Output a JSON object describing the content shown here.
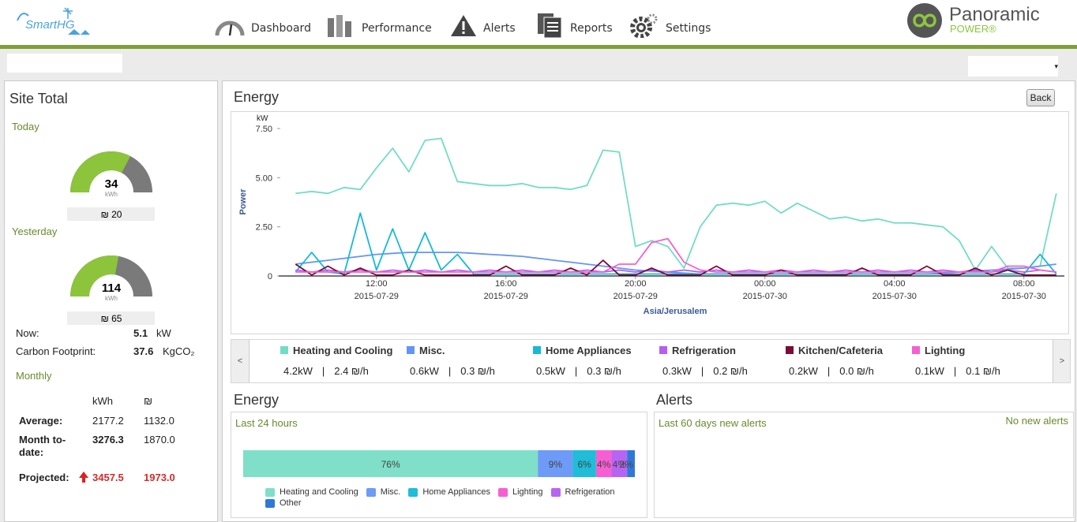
{
  "header": {
    "logo": "SmartHG",
    "nav": [
      "Dashboard",
      "Performance",
      "Alerts",
      "Reports",
      "Settings"
    ],
    "brand": "Panoramic",
    "brand_sub": "POWER®"
  },
  "site_total": {
    "title": "Site Total",
    "today": {
      "label": "Today",
      "value": 34,
      "unit": "kWh",
      "range": [
        0,
        52
      ],
      "cost": "₪ 20"
    },
    "yesterday": {
      "label": "Yesterday",
      "value": 114,
      "unit": "kWh",
      "range": [
        0,
        205
      ],
      "cost": "₪ 65"
    },
    "now": {
      "label": "Now:",
      "value": "5.1",
      "unit": "kW"
    },
    "carbon": {
      "label": "Carbon Footprint:",
      "value": "37.6",
      "unit": "KgCO₂"
    },
    "monthly": {
      "title": "Monthly",
      "columns": [
        "kWh",
        "₪"
      ],
      "rows": [
        {
          "label": "Average:",
          "values": [
            "2177.2",
            "1132.0"
          ]
        },
        {
          "label": "Month to-date:",
          "values": [
            "3276.3",
            "1870.0"
          ]
        },
        {
          "label": "Projected:",
          "values": [
            "3457.5",
            "1973.0"
          ]
        }
      ]
    }
  },
  "energy_panel": {
    "title": "Energy",
    "back": "Back"
  },
  "legend_panel": {
    "items": [
      {
        "power": "4.2kW",
        "rate": "2.4 ₪/h"
      },
      {
        "power": "0.6kW",
        "rate": "0.3 ₪/h"
      },
      {
        "power": "0.5kW",
        "rate": "0.3 ₪/h"
      },
      {
        "power": "0.3kW",
        "rate": "0.2 ₪/h"
      },
      {
        "power": "0.2kW",
        "rate": "0.0 ₪/h"
      },
      {
        "power": "0.1kW",
        "rate": "0.1 ₪/h"
      }
    ]
  },
  "alerts": {
    "title": "Alerts",
    "subtitle": "Last 60 days new alerts",
    "status": "No new alerts"
  },
  "chart_data": [
    {
      "type": "line",
      "y_unit": "kW",
      "y_label": "Power",
      "x_label": "Asia/Jerusalem",
      "xlim": [
        "2015-07-29 09:15",
        "2015-07-30 09:15"
      ],
      "xticks": [
        {
          "value": "2015-07-29 12:00",
          "label": "12:00",
          "date": "2015-07-29"
        },
        {
          "value": "2015-07-29 16:00",
          "label": "16:00",
          "date": "2015-07-29"
        },
        {
          "value": "2015-07-29 20:00",
          "label": "20:00",
          "date": "2015-07-29"
        },
        {
          "value": "2015-07-30 00:00",
          "label": "00:00",
          "date": "2015-07-30"
        },
        {
          "value": "2015-07-30 04:00",
          "label": "04:00",
          "date": "2015-07-30"
        },
        {
          "value": "2015-07-30 08:00",
          "label": "08:00",
          "date": "2015-07-30"
        }
      ],
      "ylim": [
        0,
        7.5
      ],
      "yticks": [
        0,
        {
          "value": 2.5,
          "label": "2.50"
        },
        {
          "value": 5,
          "label": "5.00"
        },
        {
          "value": 7.5,
          "label": "7.50"
        }
      ],
      "grid": false,
      "x": [
        "2015-07-29 09:30",
        "2015-07-29 10:00",
        "2015-07-29 10:30",
        "2015-07-29 11:00",
        "2015-07-29 11:30",
        "2015-07-29 12:00",
        "2015-07-29 12:30",
        "2015-07-29 13:00",
        "2015-07-29 13:30",
        "2015-07-29 14:00",
        "2015-07-29 14:30",
        "2015-07-29 15:00",
        "2015-07-29 15:30",
        "2015-07-29 16:00",
        "2015-07-29 16:30",
        "2015-07-29 17:00",
        "2015-07-29 17:30",
        "2015-07-29 18:00",
        "2015-07-29 18:30",
        "2015-07-29 19:00",
        "2015-07-29 19:30",
        "2015-07-29 20:00",
        "2015-07-29 20:30",
        "2015-07-29 21:00",
        "2015-07-29 21:30",
        "2015-07-29 22:00",
        "2015-07-29 22:30",
        "2015-07-29 23:00",
        "2015-07-29 23:30",
        "2015-07-30 00:00",
        "2015-07-30 00:30",
        "2015-07-30 01:00",
        "2015-07-30 01:30",
        "2015-07-30 02:00",
        "2015-07-30 02:30",
        "2015-07-30 03:00",
        "2015-07-30 03:30",
        "2015-07-30 04:00",
        "2015-07-30 04:30",
        "2015-07-30 05:00",
        "2015-07-30 05:30",
        "2015-07-30 06:00",
        "2015-07-30 06:30",
        "2015-07-30 07:00",
        "2015-07-30 07:30",
        "2015-07-30 08:00",
        "2015-07-30 08:30",
        "2015-07-30 09:00"
      ],
      "series": [
        {
          "name": "Heating and Cooling",
          "color": "#73dcc5",
          "values": [
            4.2,
            4.3,
            4.2,
            4.5,
            4.4,
            5.5,
            6.5,
            5.3,
            6.9,
            7.0,
            4.8,
            4.7,
            4.6,
            4.6,
            4.7,
            4.5,
            4.5,
            4.4,
            4.6,
            6.4,
            6.3,
            1.5,
            1.8,
            1.5,
            0.4,
            2.5,
            3.6,
            3.7,
            3.6,
            3.8,
            3.2,
            3.7,
            3.3,
            2.9,
            3.0,
            2.8,
            2.9,
            2.7,
            2.7,
            2.6,
            2.5,
            1.8,
            0.3,
            1.5,
            0.4,
            0.4,
            0.5,
            4.2
          ]
        },
        {
          "name": "Misc.",
          "color": "#6495f5",
          "values": [
            0.6,
            0.7,
            0.8,
            0.9,
            1.0,
            1.1,
            1.15,
            1.2,
            1.2,
            1.2,
            1.2,
            1.15,
            1.1,
            1.05,
            1.0,
            0.9,
            0.8,
            0.7,
            0.6,
            0.5,
            0.4,
            0.3,
            0.25,
            0.2,
            0.15,
            0.1,
            0.1,
            0.1,
            0.1,
            0.1,
            0.1,
            0.1,
            0.1,
            0.1,
            0.1,
            0.1,
            0.1,
            0.1,
            0.1,
            0.1,
            0.15,
            0.2,
            0.25,
            0.3,
            0.35,
            0.4,
            0.5,
            0.6
          ]
        },
        {
          "name": "Home Appliances",
          "color": "#17b9d6",
          "values": [
            0.2,
            1.2,
            0.2,
            0.1,
            3.2,
            0.3,
            2.4,
            0.3,
            2.2,
            0.3,
            1.1,
            0.1,
            0.1,
            0.1,
            0.1,
            0.1,
            0.1,
            0.1,
            0.1,
            0.1,
            0.1,
            0.1,
            0.1,
            0.1,
            0.1,
            0.1,
            0.1,
            0.1,
            0.1,
            0.1,
            0.1,
            0.1,
            0.1,
            0.1,
            0.1,
            0.1,
            0.1,
            0.1,
            0.1,
            0.1,
            0.1,
            0.1,
            0.1,
            0.1,
            0.1,
            0.1,
            1.1,
            0.1
          ]
        },
        {
          "name": "Refrigeration",
          "color": "#b45ff0",
          "values": [
            0.3,
            0.2,
            0.3,
            0.2,
            0.3,
            0.2,
            0.3,
            0.2,
            0.3,
            0.2,
            0.3,
            0.2,
            0.3,
            0.2,
            0.3,
            0.2,
            0.3,
            0.2,
            0.3,
            0.2,
            0.3,
            0.2,
            0.3,
            0.2,
            0.3,
            0.2,
            0.3,
            0.2,
            0.3,
            0.2,
            0.3,
            0.2,
            0.3,
            0.2,
            0.3,
            0.2,
            0.3,
            0.2,
            0.3,
            0.2,
            0.3,
            0.2,
            0.3,
            0.2,
            0.3,
            0.2,
            0.3,
            0.2
          ]
        },
        {
          "name": "Kitchen/Cafeteria",
          "color": "#7b0c3a",
          "values": [
            0.6,
            0.05,
            0.5,
            0.05,
            0.4,
            0.05,
            0.05,
            0.3,
            0.05,
            0.05,
            0.05,
            0.05,
            0.05,
            0.5,
            0.05,
            0.05,
            0.05,
            0.4,
            0.05,
            0.8,
            0.05,
            0.05,
            0.4,
            0.05,
            0.05,
            0.05,
            0.5,
            0.05,
            0.05,
            0.05,
            0.3,
            0.05,
            0.05,
            0.05,
            0.05,
            0.4,
            0.05,
            0.05,
            0.05,
            0.5,
            0.05,
            0.05,
            0.4,
            0.05,
            0.3,
            0.05,
            0.05,
            0.05
          ]
        },
        {
          "name": "Lighting",
          "color": "#f55fd0",
          "values": [
            0.2,
            0.2,
            0.2,
            0.2,
            0.2,
            0.2,
            0.2,
            0.2,
            0.2,
            0.2,
            0.2,
            0.2,
            0.2,
            0.2,
            0.2,
            0.2,
            0.2,
            0.2,
            0.2,
            0.2,
            0.6,
            0.6,
            1.7,
            1.9,
            0.7,
            0.3,
            0.2,
            0.2,
            0.2,
            0.2,
            0.2,
            0.2,
            0.2,
            0.2,
            0.2,
            0.2,
            0.2,
            0.2,
            0.2,
            0.2,
            0.2,
            0.2,
            0.2,
            0.2,
            0.5,
            0.5,
            0.3,
            0.2
          ]
        }
      ]
    },
    {
      "type": "bar",
      "orientation": "horizontal",
      "stacked": true,
      "title": "Energy",
      "subtitle": "Last 24 hours",
      "series": [
        {
          "name": "Heating and Cooling",
          "color": "#7fdfc8",
          "values": [
            76
          ],
          "value_labels": [
            "76%"
          ]
        },
        {
          "name": "Misc.",
          "color": "#6d9bf7",
          "values": [
            9
          ],
          "value_labels": [
            "9%"
          ]
        },
        {
          "name": "Home Appliances",
          "color": "#1fbdd8",
          "values": [
            6
          ],
          "value_labels": [
            "6%"
          ]
        },
        {
          "name": "Lighting",
          "color": "#f65fd2",
          "values": [
            4
          ],
          "value_labels": [
            "4%"
          ]
        },
        {
          "name": "Refrigeration",
          "color": "#b864f2",
          "values": [
            4
          ],
          "value_labels": [
            "4%"
          ]
        },
        {
          "name": "Other",
          "color": "#2f78d8",
          "values": [
            2
          ],
          "value_labels": [
            "2%"
          ]
        }
      ]
    }
  ]
}
